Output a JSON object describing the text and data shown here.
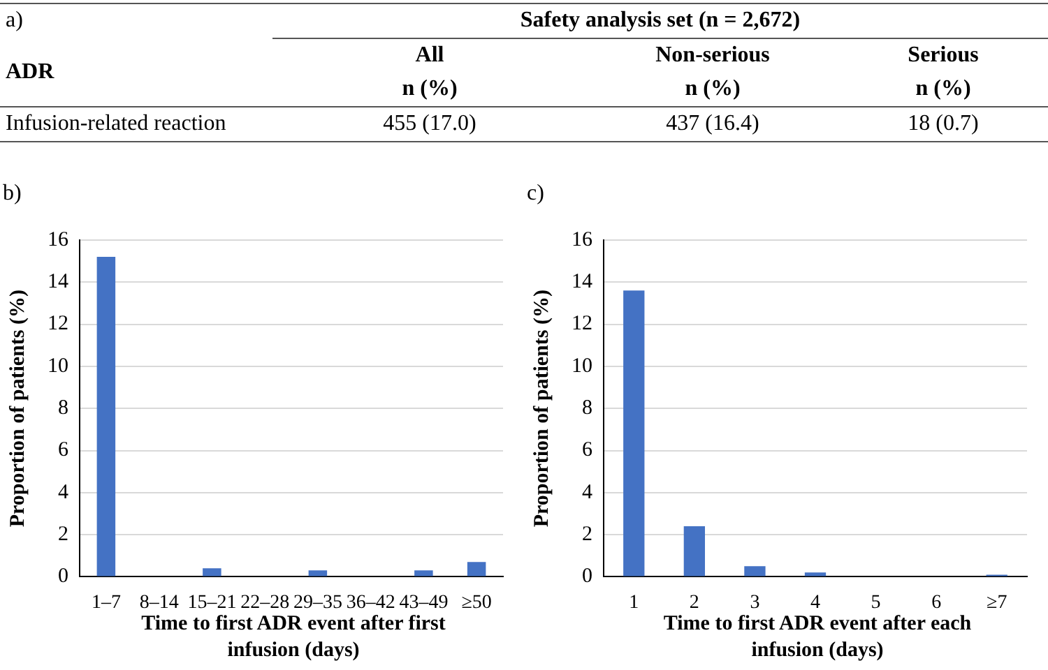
{
  "chart_data": [
    {
      "type": "other",
      "title": "a)",
      "annotations": [
        "Safety analysis set (n = 2,672)",
        "ADR",
        "All",
        "Non-serious",
        "Serious",
        "n (%)",
        "n (%)",
        "n (%)",
        "Infusion-related reaction",
        "455 (17.0)",
        "437 (16.4)",
        "18 (0.7)"
      ]
    },
    {
      "type": "bar",
      "title": "b)",
      "categories": [
        "1–7",
        "8–14",
        "15–21",
        "22–28",
        "29–35",
        "36–42",
        "43–49",
        "≥50"
      ],
      "values": [
        15.2,
        0,
        0.4,
        0,
        0.3,
        0,
        0.3,
        0.7
      ],
      "color": "#4472c4",
      "ylim": [
        0,
        16
      ],
      "yticks": [
        0,
        2,
        4,
        6,
        8,
        10,
        12,
        14,
        16
      ],
      "grid": "y",
      "ylabel": "Proportion of patients (%)",
      "xlabel": "Time to first ADR event after first infusion (days)"
    },
    {
      "type": "bar",
      "title": "c)",
      "categories": [
        "1",
        "2",
        "3",
        "4",
        "5",
        "6",
        "≥7"
      ],
      "values": [
        13.6,
        2.4,
        0.5,
        0.2,
        0,
        0,
        0.1
      ],
      "color": "#4472c4",
      "ylim": [
        0,
        16
      ],
      "yticks": [
        0,
        2,
        4,
        6,
        8,
        10,
        12,
        14,
        16
      ],
      "grid": "y",
      "ylabel": "Proportion of patients (%)",
      "xlabel": "Time to first ADR event after each infusion (days)"
    }
  ]
}
